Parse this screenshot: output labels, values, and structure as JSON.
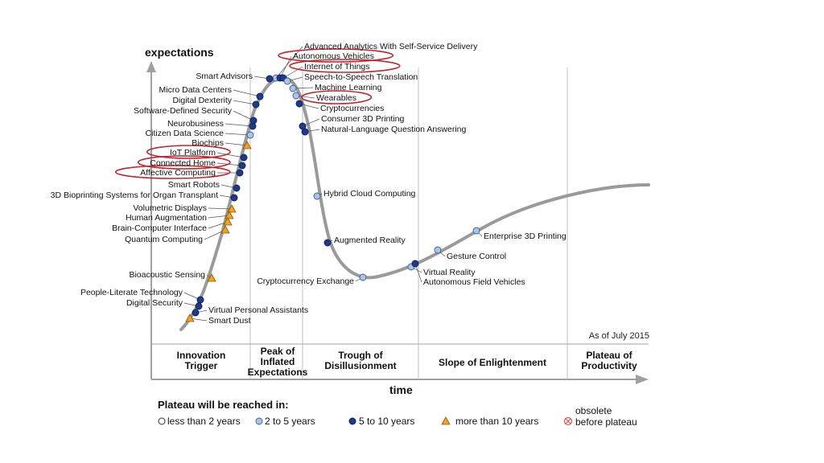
{
  "chart_data": {
    "type": "hype-cycle",
    "ylabel": "expectations",
    "xlabel": "time",
    "as_of": "As of July 2015",
    "phases": [
      [
        "Innovation",
        "Trigger"
      ],
      [
        "Peak of",
        "Inflated",
        "Expectations"
      ],
      [
        "Trough of",
        "Disillusionment"
      ],
      [
        "Slope of Enlightenment"
      ],
      [
        "Plateau of",
        "Productivity"
      ]
    ],
    "legend": {
      "title": "Plateau will be reached in:",
      "items": [
        {
          "key": "lt2",
          "label": "less than 2 years"
        },
        {
          "key": "2to5",
          "label": "2 to 5 years"
        },
        {
          "key": "5to10",
          "label": "5 to 10 years"
        },
        {
          "key": "gt10",
          "label": "more than 10 years"
        },
        {
          "key": "obs",
          "label": [
            "obsolete",
            "before plateau"
          ]
        }
      ]
    },
    "marker_colors": {
      "lt2": "#ffffff",
      "2to5": "#a9c4e6",
      "5to10": "#1f3a8a",
      "gt10": "#f2a21b",
      "obs": "#d9534f"
    },
    "curve_color": "#9a9a9a",
    "highlight_color": "#c0262c",
    "technologies": [
      {
        "name": "Advanced Analytics With Self-Service Delivery",
        "marker": "2to5"
      },
      {
        "name": "Autonomous Vehicles",
        "marker": "5to10",
        "highlighted": true
      },
      {
        "name": "Internet of Things",
        "marker": "5to10",
        "highlighted": true
      },
      {
        "name": "Speech-to-Speech Translation",
        "marker": "2to5"
      },
      {
        "name": "Machine Learning",
        "marker": "2to5"
      },
      {
        "name": "Wearables",
        "marker": "2to5",
        "highlighted": true
      },
      {
        "name": "Cryptocurrencies",
        "marker": "5to10"
      },
      {
        "name": "Consumer 3D Printing",
        "marker": "5to10"
      },
      {
        "name": "Natural-Language Question Answering",
        "marker": "5to10"
      },
      {
        "name": "Hybrid Cloud Computing",
        "marker": "2to5"
      },
      {
        "name": "Augmented Reality",
        "marker": "5to10"
      },
      {
        "name": "Cryptocurrency Exchange",
        "marker": "2to5"
      },
      {
        "name": "Virtual Reality",
        "marker": "2to5"
      },
      {
        "name": "Autonomous Field Vehicles",
        "marker": "5to10"
      },
      {
        "name": "Gesture Control",
        "marker": "2to5"
      },
      {
        "name": "Enterprise 3D Printing",
        "marker": "2to5"
      },
      {
        "name": "Smart Advisors",
        "marker": "5to10"
      },
      {
        "name": "Micro Data Centers",
        "marker": "5to10"
      },
      {
        "name": "Digital Dexterity",
        "marker": "5to10"
      },
      {
        "name": "Software-Defined Security",
        "marker": "5to10"
      },
      {
        "name": "Neurobusiness",
        "marker": "5to10"
      },
      {
        "name": "Citizen Data Science",
        "marker": "2to5"
      },
      {
        "name": "Biochips",
        "marker": "gt10"
      },
      {
        "name": "IoT Platform",
        "marker": "5to10",
        "highlighted": true
      },
      {
        "name": "Connected Home",
        "marker": "5to10",
        "highlighted": true
      },
      {
        "name": "Affective Computing",
        "marker": "5to10",
        "highlighted": true
      },
      {
        "name": "Smart Robots",
        "marker": "5to10"
      },
      {
        "name": "3D Bioprinting Systems for Organ Transplant",
        "marker": "5to10"
      },
      {
        "name": "Volumetric Displays",
        "marker": "gt10"
      },
      {
        "name": "Human Augmentation",
        "marker": "gt10"
      },
      {
        "name": "Brain-Computer Interface",
        "marker": "gt10"
      },
      {
        "name": "Quantum Computing",
        "marker": "gt10"
      },
      {
        "name": "Bioacoustic Sensing",
        "marker": "gt10"
      },
      {
        "name": "People-Literate Technology",
        "marker": "5to10"
      },
      {
        "name": "Digital Security",
        "marker": "5to10"
      },
      {
        "name": "Virtual Personal Assistants",
        "marker": "5to10"
      },
      {
        "name": "Smart Dust",
        "marker": "gt10"
      }
    ]
  }
}
